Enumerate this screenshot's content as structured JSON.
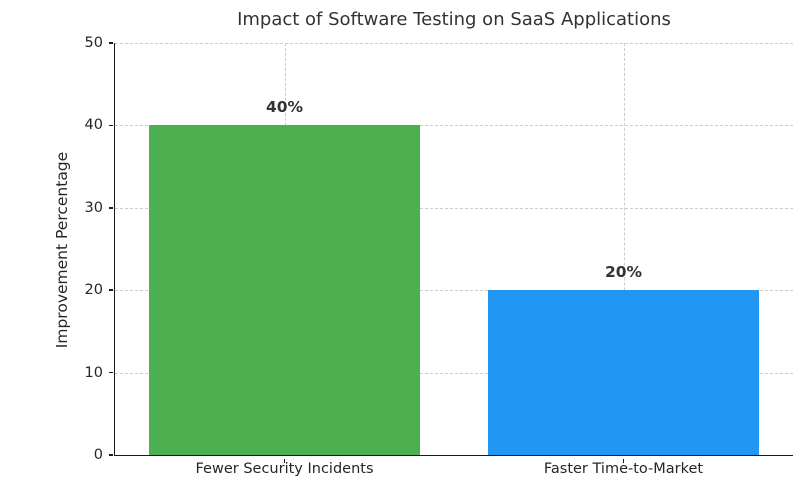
{
  "chart_data": {
    "type": "bar",
    "title": "Impact of Software Testing on SaaS Applications",
    "xlabel": "",
    "ylabel": "Improvement Percentage",
    "categories": [
      "Fewer Security Incidents",
      "Faster Time-to-Market"
    ],
    "values": [
      40,
      20
    ],
    "value_labels": [
      "40%",
      "20%"
    ],
    "bar_colors": [
      "#4caf50",
      "#2196f3"
    ],
    "ylim": [
      0,
      50
    ],
    "yticks": [
      0,
      10,
      20,
      30,
      40,
      50
    ],
    "grid": {
      "horizontal": true,
      "vertical": true,
      "style": "dashed"
    },
    "legend_position": "none",
    "colors": {
      "title": "#333333",
      "tick_label": "#262626",
      "grid": "#cccccc",
      "spine": "#1a1a1a",
      "value_label": "#333333",
      "background": "#ffffff"
    }
  }
}
